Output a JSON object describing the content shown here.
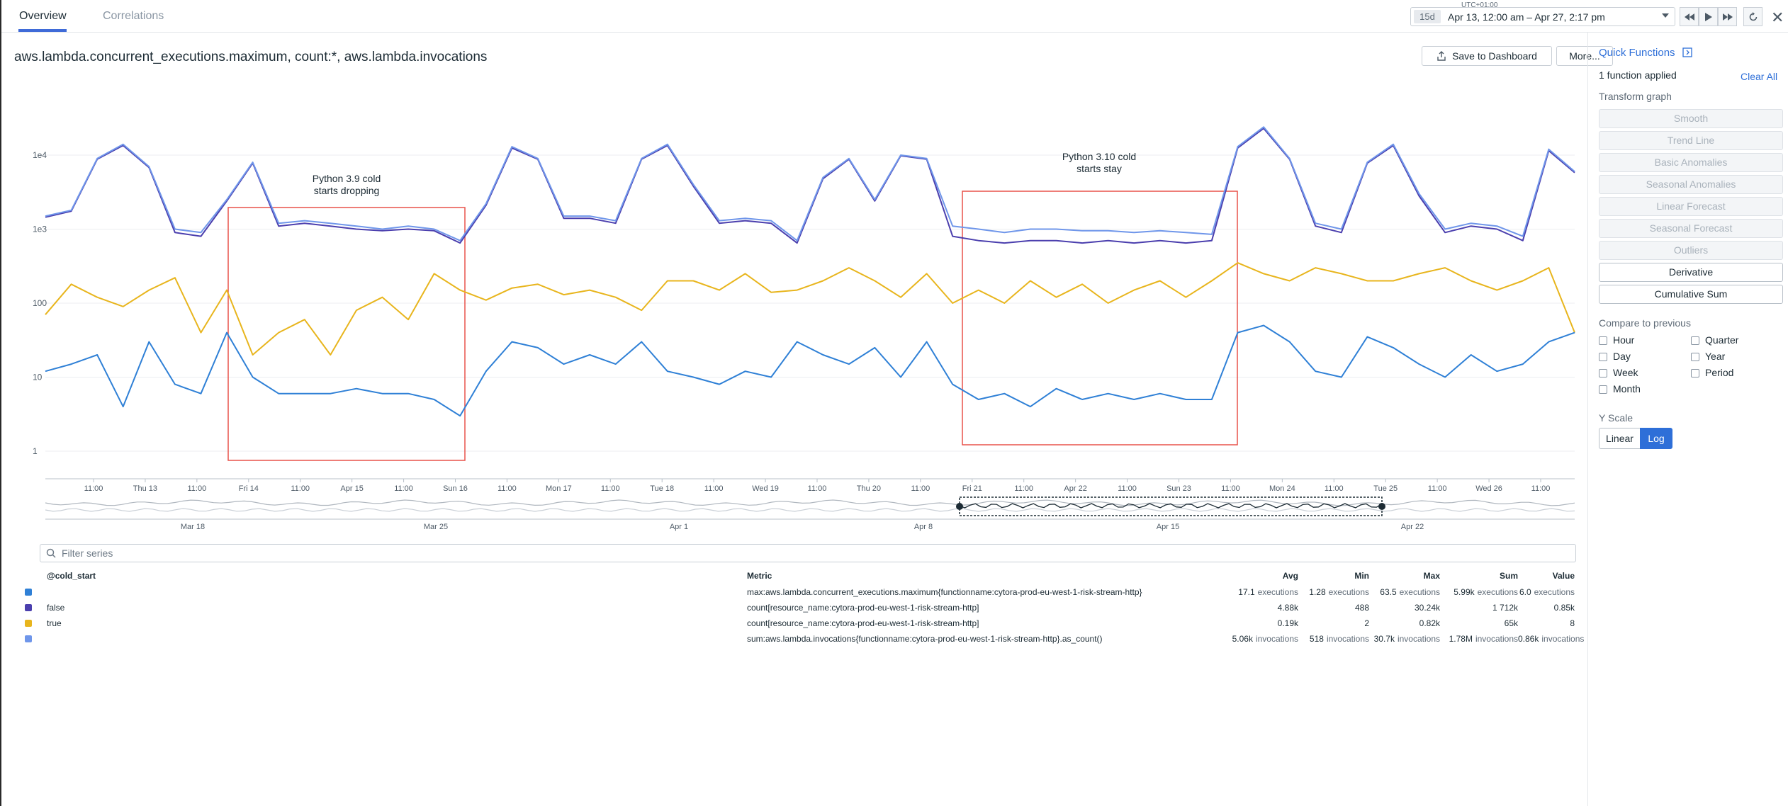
{
  "tabs": [
    {
      "label": "Overview",
      "active": true
    },
    {
      "label": "Correlations",
      "active": false
    }
  ],
  "timeframe": {
    "timezone": "UTC+01:00",
    "badge": "15d",
    "range": "Apr 13, 12:00 am – Apr 27, 2:17 pm"
  },
  "graph": {
    "title": "aws.lambda.concurrent_executions.maximum, count:*, aws.lambda.invocations",
    "save_label": "Save to Dashboard",
    "more_label": "More..."
  },
  "chart_data": {
    "type": "line",
    "y_scale": "log",
    "ylim": [
      0.7,
      30000
    ],
    "y_ticks": [
      {
        "label": "1e4",
        "value": 10000
      },
      {
        "label": "1e3",
        "value": 1000
      },
      {
        "label": "100",
        "value": 100
      },
      {
        "label": "10",
        "value": 10
      },
      {
        "label": "1",
        "value": 1
      }
    ],
    "x_tick_labels": [
      "11:00",
      "Thu 13",
      "11:00",
      "Fri 14",
      "11:00",
      "Apr 15",
      "11:00",
      "Sun 16",
      "11:00",
      "Mon 17",
      "11:00",
      "Tue 18",
      "11:00",
      "Wed 19",
      "11:00",
      "Thu 20",
      "11:00",
      "Fri 21",
      "11:00",
      "Apr 22",
      "11:00",
      "Sun 23",
      "11:00",
      "Mon 24",
      "11:00",
      "Tue 25",
      "11:00",
      "Wed 26",
      "11:00"
    ],
    "x_range_labels": [
      "Mar 18",
      "Mar 25",
      "Apr 1",
      "Apr 8",
      "Apr 15",
      "Apr 22"
    ],
    "x_points": 60,
    "series": [
      {
        "name": "sum:aws.lambda.invocations",
        "color": "#6f96ea",
        "values": [
          1500,
          1800,
          9000,
          14000,
          7000,
          1000,
          900,
          2500,
          8000,
          1200,
          1300,
          1200,
          1100,
          1000,
          1100,
          1000,
          700,
          2200,
          13000,
          9000,
          1500,
          1500,
          1300,
          9000,
          14000,
          4000,
          1300,
          1400,
          1300,
          700,
          5000,
          9000,
          2500,
          10000,
          9000,
          1100,
          1000,
          900,
          1000,
          1000,
          950,
          950,
          900,
          950,
          900,
          850,
          13000,
          24000,
          9000,
          1200,
          1000,
          8000,
          14000,
          3000,
          1000,
          1200,
          1100,
          800,
          12000,
          6000
        ]
      },
      {
        "name": "false",
        "color": "#4b3fae",
        "values": [
          1450,
          1750,
          8800,
          13500,
          6800,
          900,
          800,
          2400,
          7800,
          1100,
          1200,
          1100,
          1000,
          950,
          1000,
          950,
          650,
          2100,
          12500,
          8800,
          1400,
          1400,
          1200,
          8800,
          13500,
          3800,
          1200,
          1300,
          1200,
          650,
          4800,
          8800,
          2400,
          9800,
          8800,
          800,
          700,
          650,
          700,
          700,
          650,
          700,
          650,
          700,
          650,
          700,
          12500,
          23000,
          8800,
          1100,
          900,
          7800,
          13500,
          2800,
          900,
          1100,
          1000,
          700,
          11500,
          5800
        ]
      },
      {
        "name": "true",
        "color": "#e8b51d",
        "values": [
          70,
          180,
          120,
          90,
          150,
          220,
          40,
          150,
          20,
          40,
          60,
          20,
          80,
          120,
          60,
          250,
          150,
          110,
          160,
          180,
          130,
          150,
          120,
          80,
          200,
          200,
          150,
          250,
          140,
          150,
          200,
          300,
          200,
          120,
          250,
          100,
          150,
          100,
          200,
          120,
          180,
          100,
          150,
          200,
          120,
          200,
          350,
          250,
          200,
          300,
          250,
          200,
          200,
          250,
          300,
          200,
          150,
          200,
          300,
          40
        ]
      },
      {
        "name": "max:aws.lambda.concurrent_executions.maximum",
        "color": "#2f80d6",
        "values": [
          12,
          15,
          20,
          4,
          30,
          8,
          6,
          40,
          10,
          6,
          6,
          6,
          7,
          6,
          6,
          5,
          3,
          12,
          30,
          25,
          15,
          20,
          15,
          30,
          12,
          10,
          8,
          12,
          10,
          30,
          20,
          15,
          25,
          10,
          30,
          8,
          5,
          6,
          4,
          7,
          5,
          6,
          5,
          6,
          5,
          5,
          40,
          50,
          30,
          12,
          10,
          35,
          25,
          15,
          10,
          20,
          12,
          15,
          30,
          40
        ]
      }
    ],
    "annotations": [
      {
        "text": "Python 3.9 cold",
        "text2": "starts dropping"
      },
      {
        "text": "Python 3.10 cold",
        "text2": "starts stay"
      }
    ]
  },
  "filter": {
    "placeholder": "Filter series"
  },
  "legend": {
    "group_header": "@cold_start",
    "headers": {
      "metric": "Metric",
      "avg": "Avg",
      "min": "Min",
      "max": "Max",
      "sum": "Sum",
      "value": "Value"
    },
    "rows": [
      {
        "color": "#2f80d6",
        "group": "",
        "metric": "max:aws.lambda.concurrent_executions.maximum{functionname:cytora-prod-eu-west-1-risk-stream-http}",
        "avg": "17.1",
        "avg_u": "executions",
        "min": "1.28",
        "min_u": "executions",
        "max": "63.5",
        "max_u": "executions",
        "sum": "5.99k",
        "sum_u": "executions",
        "value": "6.0",
        "value_u": "executions"
      },
      {
        "color": "#4b3fae",
        "group": "false",
        "metric": "count[resource_name:cytora-prod-eu-west-1-risk-stream-http]",
        "avg": "4.88k",
        "avg_u": "",
        "min": "488",
        "min_u": "",
        "max": "30.24k",
        "max_u": "",
        "sum": "1 712k",
        "sum_u": "",
        "value": "0.85k",
        "value_u": ""
      },
      {
        "color": "#e8b51d",
        "group": "true",
        "metric": "count[resource_name:cytora-prod-eu-west-1-risk-stream-http]",
        "avg": "0.19k",
        "avg_u": "",
        "min": "2",
        "min_u": "",
        "max": "0.82k",
        "max_u": "",
        "sum": "65k",
        "sum_u": "",
        "value": "8",
        "value_u": ""
      },
      {
        "color": "#6f96ea",
        "group": "",
        "metric": "sum:aws.lambda.invocations{functionname:cytora-prod-eu-west-1-risk-stream-http}.as_count()",
        "avg": "5.06k",
        "avg_u": "invocations",
        "min": "518",
        "min_u": "invocations",
        "max": "30.7k",
        "max_u": "invocations",
        "sum": "1.78M",
        "sum_u": "invocations",
        "value": "0.86k",
        "value_u": "invocations"
      }
    ]
  },
  "sidebar": {
    "title": "Quick Functions",
    "applied": "1 function applied",
    "clear_all": "Clear All",
    "transform_label": "Transform graph",
    "functions": [
      {
        "label": "Smooth",
        "enabled": false
      },
      {
        "label": "Trend Line",
        "enabled": false
      },
      {
        "label": "Basic Anomalies",
        "enabled": false
      },
      {
        "label": "Seasonal Anomalies",
        "enabled": false
      },
      {
        "label": "Linear Forecast",
        "enabled": false
      },
      {
        "label": "Seasonal Forecast",
        "enabled": false
      },
      {
        "label": "Outliers",
        "enabled": false
      },
      {
        "label": "Derivative",
        "enabled": true
      },
      {
        "label": "Cumulative Sum",
        "enabled": true
      }
    ],
    "compare_label": "Compare to previous",
    "compare": [
      "Hour",
      "Quarter",
      "Day",
      "Year",
      "Week",
      "Period",
      "Month"
    ],
    "yscale_label": "Y Scale",
    "yscale_linear": "Linear",
    "yscale_log": "Log",
    "accent": "#2e6fd8"
  }
}
